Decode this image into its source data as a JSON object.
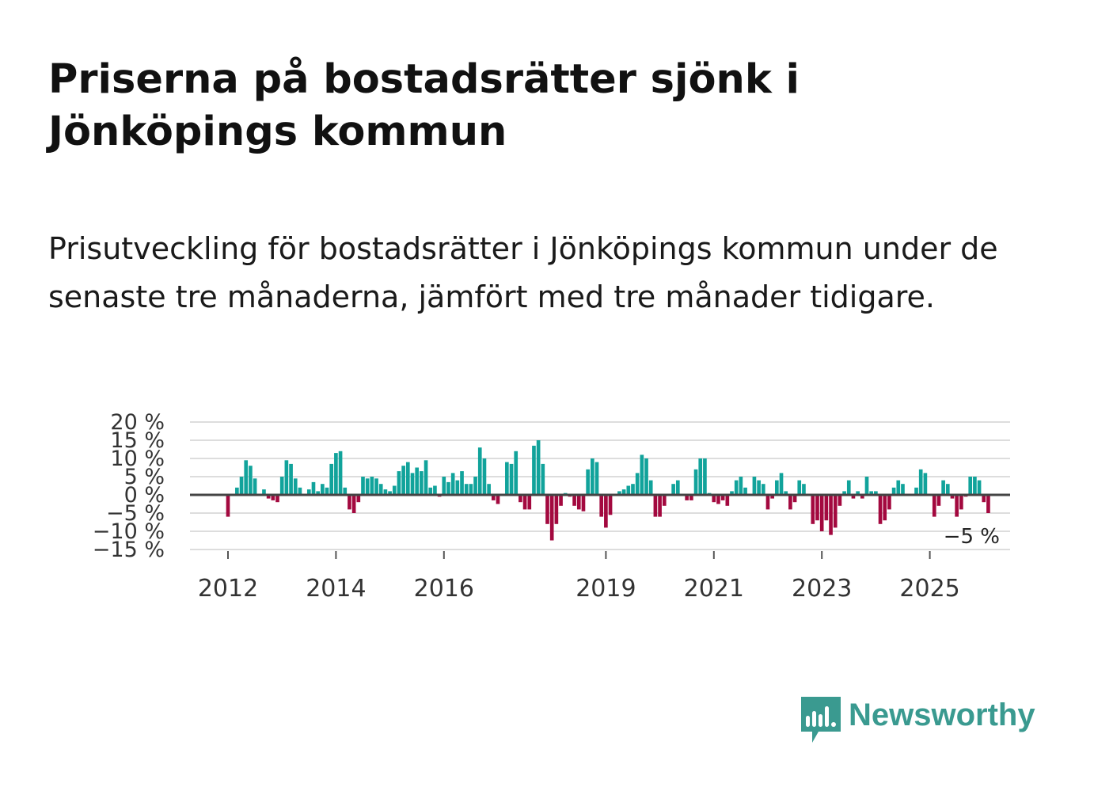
{
  "header": {
    "title": "Priserna på bostadsrätter sjönk i Jönköpings kommun",
    "subtitle": "Prisutveckling för bostadsrätter i Jönköpings kommun under de senaste tre månaderna, jämfört med tre månader tidigare."
  },
  "brand": {
    "name": "Newsworthy",
    "color": "#3a9a90",
    "icon": "newsworthy-logo-icon"
  },
  "colors": {
    "positive": "#11a39b",
    "negative": "#a3093f",
    "grid": "#dddddd",
    "zero_line": "#444444",
    "axis_text": "#333333"
  },
  "chart_data": {
    "type": "bar",
    "title": "Priserna på bostadsrätter sjönk i Jönköpings kommun",
    "xlabel": "",
    "ylabel": "",
    "ylim": [
      -15,
      20
    ],
    "yticks": [
      20,
      15,
      10,
      5,
      0,
      -5,
      -10,
      -15
    ],
    "ytick_labels": [
      "20 %",
      "15 %",
      "10 %",
      "5 %",
      "0 %",
      "−5 %",
      "−10 %",
      "−15 %"
    ],
    "xtick_labels": [
      "2012",
      "2014",
      "2016",
      "2019",
      "2021",
      "2023",
      "2025"
    ],
    "xtick_dates": [
      2012.0,
      2014.0,
      2016.0,
      2019.0,
      2021.0,
      2023.0,
      2025.0
    ],
    "x_start": 2012.0,
    "x_step": 0.08333,
    "last_label": "−5 %",
    "grid": true,
    "values": [
      -6.0,
      0,
      2.0,
      5.0,
      9.5,
      8.0,
      4.5,
      0,
      1.5,
      -1.0,
      -1.5,
      -2.0,
      5.0,
      9.5,
      8.5,
      4.5,
      2.0,
      0,
      1.5,
      3.5,
      1.0,
      3.0,
      2.0,
      8.5,
      11.5,
      12.0,
      2.0,
      -4.0,
      -5.0,
      -2.0,
      5.0,
      4.5,
      5.0,
      4.5,
      3.0,
      1.5,
      1.0,
      2.5,
      6.5,
      8.0,
      9.0,
      6.0,
      7.5,
      6.5,
      9.5,
      2.0,
      2.5,
      -0.5,
      5.0,
      3.5,
      6.0,
      4.0,
      6.5,
      3.0,
      3.0,
      5.0,
      13.0,
      10.0,
      3.0,
      -1.5,
      -2.5,
      0,
      9.0,
      8.5,
      12.0,
      -2.0,
      -4.0,
      -4.0,
      13.5,
      15.0,
      8.5,
      -8.0,
      -12.5,
      -8.0,
      -3.0,
      0.5,
      -0.5,
      -3.0,
      -4.0,
      -4.5,
      7.0,
      10.0,
      9.0,
      -6.0,
      -9.0,
      -5.5,
      0,
      1.0,
      1.5,
      2.5,
      3.0,
      6.0,
      11.0,
      10.0,
      4.0,
      -6.0,
      -6.0,
      -3.0,
      0,
      3.0,
      4.0,
      0,
      -1.5,
      -1.5,
      7.0,
      10.0,
      10.0,
      0.5,
      -2.0,
      -2.5,
      -1.5,
      -3.0,
      1.0,
      4.0,
      5.0,
      2.0,
      0,
      5.0,
      4.0,
      3.0,
      -4.0,
      -1.0,
      4.0,
      6.0,
      1.0,
      -4.0,
      -2.0,
      4.0,
      3.0,
      0,
      -8.0,
      -7.0,
      -10.0,
      -7.0,
      -11.0,
      -9.0,
      -3.0,
      1.0,
      4.0,
      -1.0,
      1.0,
      -1.0,
      5.0,
      1.0,
      1.0,
      -8.0,
      -7.0,
      -4.0,
      2.0,
      4.0,
      3.0,
      0,
      0,
      2.0,
      7.0,
      6.0,
      0,
      -6.0,
      -3.0,
      4.0,
      3.0,
      -1.0,
      -6.0,
      -4.0,
      -0.5,
      5.0,
      5.0,
      4.0,
      -2.0,
      -5.0
    ]
  }
}
